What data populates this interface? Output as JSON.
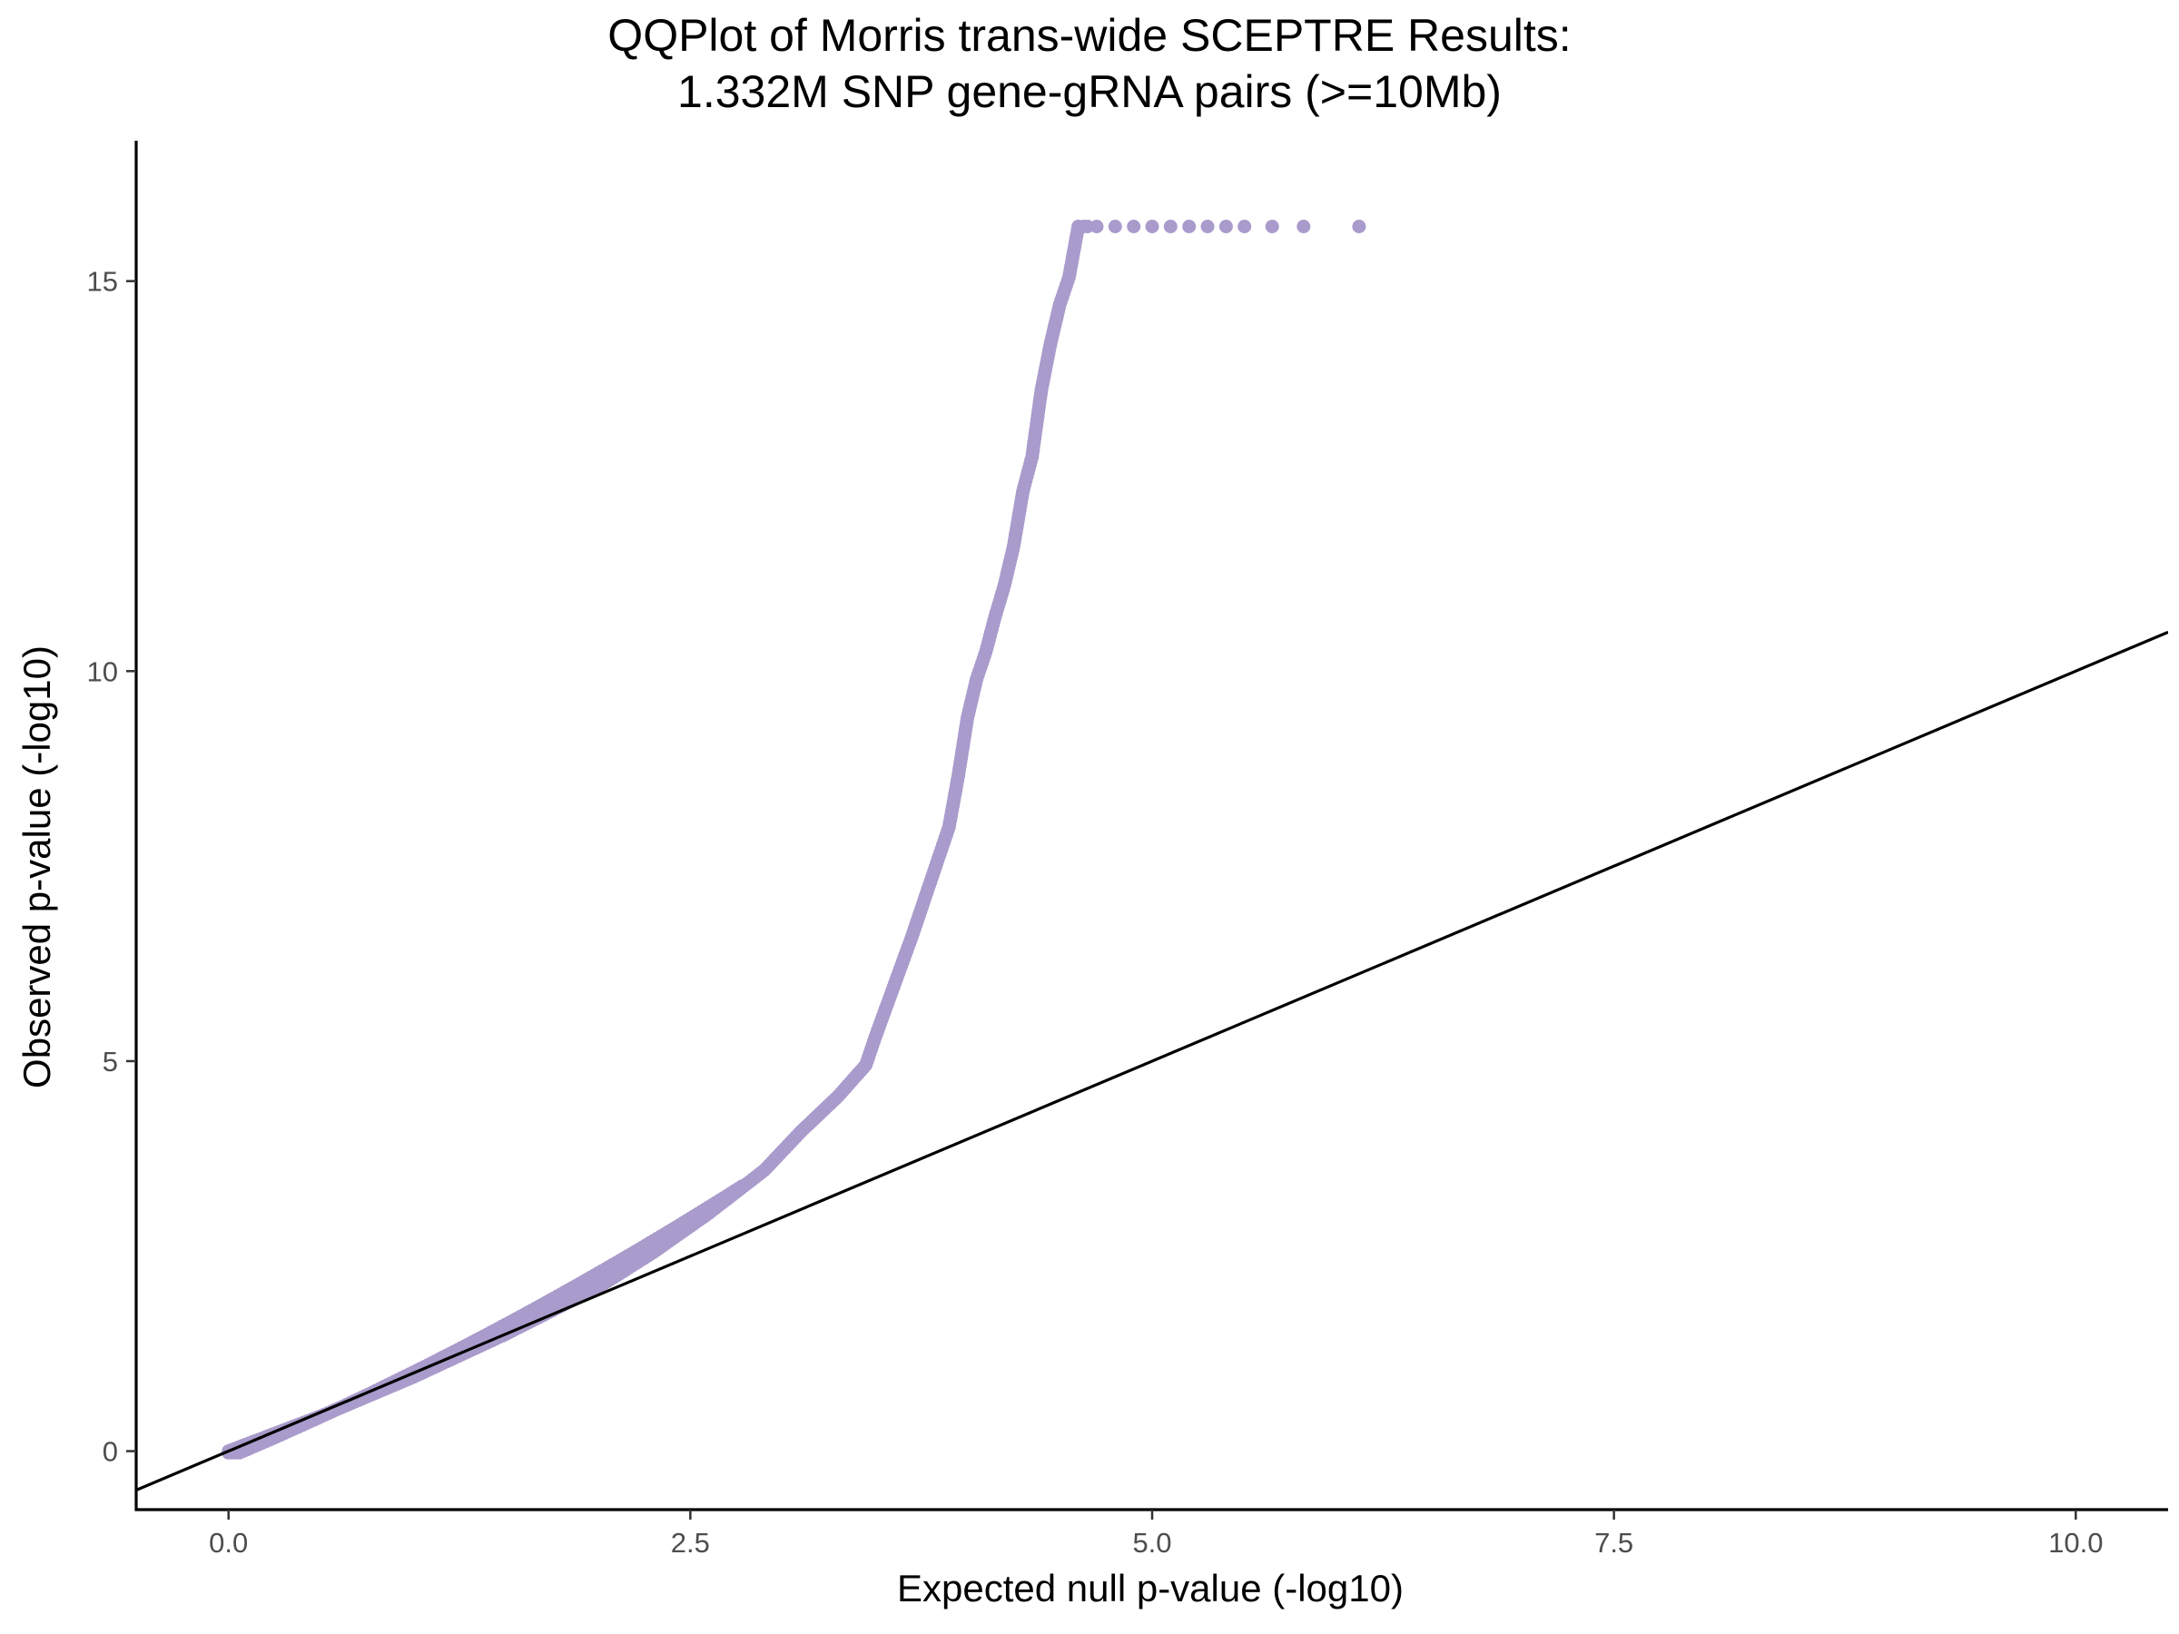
{
  "chart_data": {
    "type": "scatter",
    "title_lines": [
      "QQPlot of Morris trans-wide SCEPTRE Results:",
      "1.332M SNP gene-gRNA pairs (>=10Mb)"
    ],
    "xlabel": "Expected null p-value (-log10)",
    "ylabel": "Observed p-value (-log10)",
    "xlim": [
      -0.5,
      10.5
    ],
    "ylim": [
      -0.75,
      16.8
    ],
    "x_ticks": [
      {
        "value": 0,
        "label": "0.0"
      },
      {
        "value": 2.5,
        "label": "2.5"
      },
      {
        "value": 5,
        "label": "5.0"
      },
      {
        "value": 7.5,
        "label": "7.5"
      },
      {
        "value": 10,
        "label": "10.0"
      }
    ],
    "y_ticks": [
      {
        "value": 0,
        "label": "0"
      },
      {
        "value": 5,
        "label": "5"
      },
      {
        "value": 10,
        "label": "10"
      },
      {
        "value": 15,
        "label": "15"
      }
    ],
    "grid": false,
    "legend": "none",
    "point_color": "#A99BCB",
    "reference_line": {
      "intercept": 0,
      "slope": 1,
      "color": "#000000"
    },
    "series": [
      {
        "x": [
          0.0,
          0.5,
          1.0,
          1.5,
          2.0,
          2.3,
          2.6,
          2.9,
          3.1,
          3.3,
          3.45,
          3.5,
          3.6,
          3.7,
          3.8,
          3.9,
          3.95,
          4.0,
          4.05,
          4.1,
          4.15,
          4.2,
          4.25,
          4.3,
          4.35,
          4.4,
          4.45,
          4.5,
          4.55,
          4.6,
          4.63,
          4.65,
          4.7,
          4.8,
          4.9,
          5.0,
          5.1,
          5.2,
          5.3,
          5.4,
          5.5,
          5.65,
          5.82,
          6.12
        ],
        "y": [
          0.0,
          0.45,
          0.95,
          1.5,
          2.1,
          2.55,
          3.05,
          3.6,
          4.1,
          4.55,
          4.95,
          5.3,
          5.95,
          6.6,
          7.3,
          8.0,
          8.65,
          9.4,
          9.9,
          10.25,
          10.7,
          11.1,
          11.6,
          12.3,
          12.75,
          13.6,
          14.2,
          14.7,
          15.05,
          15.7,
          15.7,
          15.7,
          15.7,
          15.7,
          15.7,
          15.7,
          15.7,
          15.7,
          15.7,
          15.7,
          15.7,
          15.7,
          15.7,
          15.7
        ]
      }
    ]
  }
}
